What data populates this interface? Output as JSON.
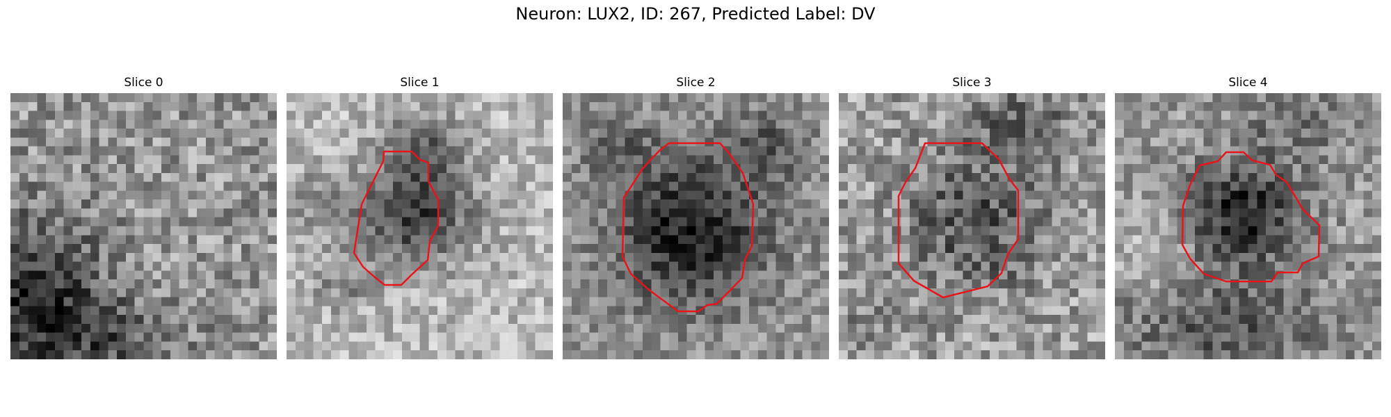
{
  "figure": {
    "title": "Neuron: LUX2, ID: 267, Predicted Label: DV"
  },
  "panels": [
    {
      "title": "Slice 0",
      "has_contour": false
    },
    {
      "title": "Slice 1",
      "has_contour": true
    },
    {
      "title": "Slice 2",
      "has_contour": true
    },
    {
      "title": "Slice 3",
      "has_contour": true
    },
    {
      "title": "Slice 4",
      "has_contour": true
    }
  ],
  "colors": {
    "contour": "#e8141a",
    "background": "#ffffff"
  }
}
